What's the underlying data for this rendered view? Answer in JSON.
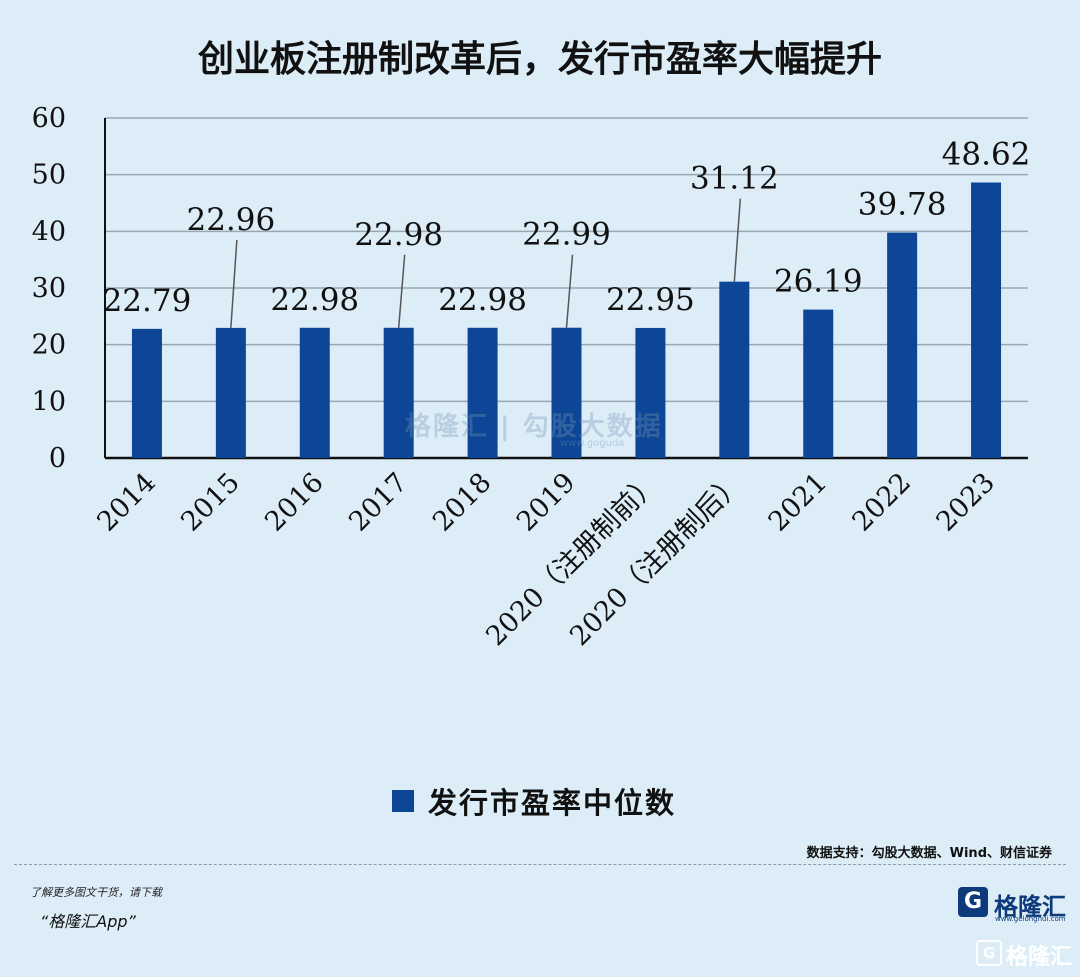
{
  "title": "创业板注册制改革后，发行市盈率大幅提升",
  "chart_data": {
    "type": "bar",
    "categories": [
      "2014",
      "2015",
      "2016",
      "2017",
      "2018",
      "2019",
      "2020（注册制前）",
      "2020（注册制后）",
      "2021",
      "2022",
      "2023"
    ],
    "series": [
      {
        "name": "发行市盈率中位数",
        "values": [
          22.79,
          22.96,
          22.98,
          22.98,
          22.98,
          22.99,
          22.95,
          31.12,
          26.19,
          39.78,
          48.62
        ],
        "labels": [
          "22.79",
          "22.96",
          "22.98",
          "22.98",
          "22.98",
          "22.99",
          "22.95",
          "31.12",
          "26.19",
          "39.78",
          "48.62"
        ]
      }
    ],
    "yticks": [
      "0",
      "10",
      "20",
      "30",
      "40",
      "50",
      "60"
    ],
    "ylim": [
      0,
      60
    ],
    "grid": true,
    "legend_position": "bottom",
    "color": "#0d4696"
  },
  "source": "数据支持：勾股大数据、Wind、财信证券",
  "footer": {
    "line1": "了解更多图文干货，请下载",
    "line2": "“格隆汇App”"
  },
  "brand": {
    "logo_glyph": "G",
    "name": "格隆汇",
    "url": "www.gelonghui.com"
  },
  "watermark": {
    "text": "格隆汇 | 勾股大数据",
    "url": "www.goguda",
    "corner_text": "格隆汇"
  }
}
